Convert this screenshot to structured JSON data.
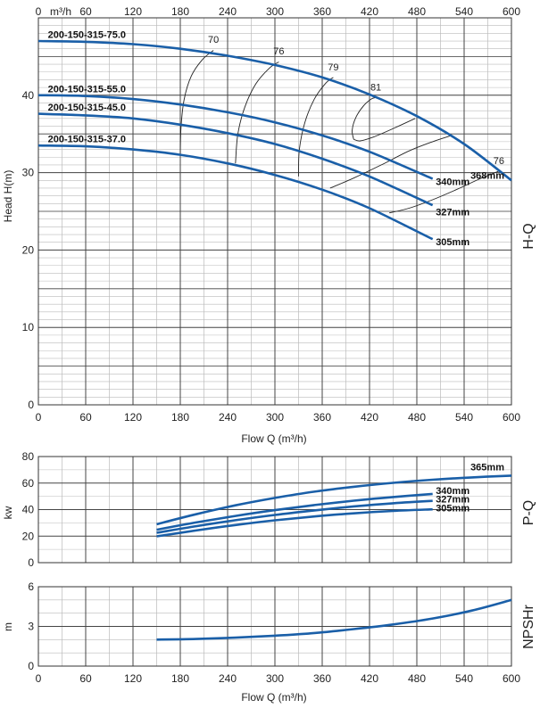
{
  "chart_data": [
    {
      "type": "line",
      "panel": "H-Q",
      "side_label": "H-Q",
      "xlabel": "Flow Q (m³/h)",
      "top_unit": "m³/h",
      "ylabel": "Head H(m)",
      "xlim": [
        0,
        600
      ],
      "ylim": [
        0,
        50
      ],
      "x_ticks": [
        0,
        60,
        120,
        180,
        240,
        300,
        360,
        420,
        480,
        540,
        600
      ],
      "y_ticks": [
        0,
        10,
        20,
        30,
        40
      ],
      "grid": true,
      "colors": {
        "curve": "#1a5fa8",
        "efficiency": "#222222",
        "grid": "#444444",
        "minor_grid": "#bbbbbb"
      },
      "series": [
        {
          "name": "368mm",
          "model": "200-150-315-75.0",
          "x": [
            0,
            60,
            120,
            180,
            240,
            300,
            360,
            420,
            480,
            540,
            600
          ],
          "y": [
            47.0,
            46.9,
            46.6,
            46.0,
            45.1,
            43.9,
            42.3,
            40.1,
            37.3,
            33.7,
            29.0
          ]
        },
        {
          "name": "340mm",
          "model": "200-150-315-55.0",
          "x": [
            0,
            60,
            120,
            180,
            240,
            300,
            360,
            420,
            500
          ],
          "y": [
            40.0,
            39.9,
            39.5,
            38.8,
            37.8,
            36.5,
            34.8,
            32.7,
            29.2
          ]
        },
        {
          "name": "327mm",
          "model": "200-150-315-45.0",
          "x": [
            0,
            60,
            120,
            180,
            240,
            300,
            360,
            420,
            500
          ],
          "y": [
            37.6,
            37.4,
            37.0,
            36.2,
            35.1,
            33.7,
            31.8,
            29.5,
            25.8
          ]
        },
        {
          "name": "305mm",
          "model": "200-150-315-37.0",
          "x": [
            0,
            60,
            120,
            180,
            240,
            300,
            360,
            420,
            500
          ],
          "y": [
            33.5,
            33.4,
            33.0,
            32.3,
            31.2,
            29.7,
            27.8,
            25.4,
            21.4
          ]
        }
      ],
      "efficiency_curves": [
        {
          "label": "70",
          "x": [
            180,
            181,
            185,
            194,
            208,
            222
          ],
          "y": [
            32.4,
            36.0,
            39.5,
            42.5,
            44.6,
            45.8
          ]
        },
        {
          "label": "76",
          "x": [
            250,
            253,
            262,
            276,
            293,
            305
          ],
          "y": [
            31.2,
            35.0,
            38.5,
            41.5,
            43.5,
            44.3
          ]
        },
        {
          "label": "79",
          "x": [
            330,
            331,
            338,
            350,
            364,
            374
          ],
          "y": [
            29.5,
            33.0,
            36.5,
            39.5,
            41.5,
            42.3
          ]
        },
        {
          "label": "81",
          "x": [
            400,
            398,
            403,
            413,
            422,
            428
          ],
          "y": [
            34.3,
            35.5,
            37.2,
            38.7,
            39.5,
            39.7
          ]
        },
        {
          "label": "",
          "x": [
            400,
            408,
            425,
            448,
            478
          ],
          "y": [
            34.3,
            34.1,
            34.6,
            35.6,
            37.0
          ]
        },
        {
          "label": "",
          "x": [
            370,
            400,
            435,
            470,
            500,
            524
          ],
          "y": [
            28.0,
            29.3,
            31.0,
            32.8,
            34.0,
            34.8
          ]
        },
        {
          "label": "",
          "x": [
            445,
            470,
            500,
            530,
            560,
            584
          ],
          "y": [
            24.8,
            25.4,
            26.5,
            27.8,
            29.2,
            30.2
          ]
        }
      ],
      "efficiency_labels": [
        {
          "text": "70",
          "x": 222,
          "y": 46.8
        },
        {
          "text": "76",
          "x": 305,
          "y": 45.3
        },
        {
          "text": "79",
          "x": 374,
          "y": 43.2
        },
        {
          "text": "81",
          "x": 428,
          "y": 40.6
        },
        {
          "text": "76",
          "x": 584,
          "y": 31.1
        }
      ],
      "model_labels": [
        {
          "text": "200-150-315-75.0",
          "x": 12,
          "y": 47.4
        },
        {
          "text": "200-150-315-55.0",
          "x": 12,
          "y": 40.4
        },
        {
          "text": "200-150-315-45.0",
          "x": 12,
          "y": 38.0
        },
        {
          "text": "200-150-315-37.0",
          "x": 12,
          "y": 33.9
        }
      ],
      "end_labels": [
        {
          "text": "368mm",
          "x": 548,
          "y": 29.2
        },
        {
          "text": "340mm",
          "x": 504,
          "y": 28.4
        },
        {
          "text": "327mm",
          "x": 504,
          "y": 24.5
        },
        {
          "text": "305mm",
          "x": 504,
          "y": 20.6
        }
      ]
    },
    {
      "type": "line",
      "panel": "P-Q",
      "side_label": "P-Q",
      "ylabel": "kw",
      "xlim": [
        0,
        600
      ],
      "ylim": [
        0,
        80
      ],
      "x_ticks": [
        0,
        60,
        120,
        180,
        240,
        300,
        360,
        420,
        480,
        540,
        600
      ],
      "y_ticks": [
        0,
        20,
        40,
        60,
        80
      ],
      "grid": true,
      "series": [
        {
          "name": "365mm",
          "x": [
            150,
            200,
            250,
            300,
            350,
            400,
            450,
            500,
            550,
            600
          ],
          "y": [
            29.0,
            36.5,
            43.2,
            48.8,
            53.5,
            57.2,
            60.2,
            62.5,
            64.3,
            65.6
          ]
        },
        {
          "name": "340mm",
          "x": [
            150,
            200,
            250,
            300,
            350,
            400,
            450,
            500
          ],
          "y": [
            24.8,
            30.3,
            35.2,
            39.6,
            43.4,
            46.7,
            49.5,
            51.8
          ]
        },
        {
          "name": "327mm",
          "x": [
            150,
            200,
            250,
            300,
            350,
            400,
            450,
            500
          ],
          "y": [
            22.5,
            27.5,
            32.0,
            36.0,
            39.4,
            42.4,
            44.8,
            46.6
          ]
        },
        {
          "name": "305mm",
          "x": [
            150,
            200,
            250,
            300,
            350,
            400,
            450,
            500
          ],
          "y": [
            19.8,
            24.3,
            28.4,
            31.9,
            34.8,
            37.2,
            39.0,
            40.2
          ]
        }
      ],
      "end_labels": [
        {
          "text": "365mm",
          "x": 548,
          "y": 69.5
        },
        {
          "text": "340mm",
          "x": 504,
          "y": 51.8
        },
        {
          "text": "327mm",
          "x": 504,
          "y": 45.5
        },
        {
          "text": "305mm",
          "x": 504,
          "y": 38.5
        }
      ]
    },
    {
      "type": "line",
      "panel": "NPSHr",
      "side_label": "NPSHr",
      "xlabel": "Flow Q (m³/h)",
      "ylabel": "m",
      "xlim": [
        0,
        600
      ],
      "ylim": [
        0,
        6
      ],
      "x_ticks": [
        0,
        60,
        120,
        180,
        240,
        300,
        360,
        420,
        480,
        540,
        600
      ],
      "y_ticks": [
        0,
        3,
        6
      ],
      "grid": true,
      "series": [
        {
          "name": "",
          "x": [
            150,
            200,
            250,
            300,
            350,
            400,
            450,
            500,
            550,
            600
          ],
          "y": [
            2.0,
            2.05,
            2.15,
            2.3,
            2.5,
            2.8,
            3.15,
            3.6,
            4.2,
            5.0
          ]
        }
      ]
    }
  ]
}
